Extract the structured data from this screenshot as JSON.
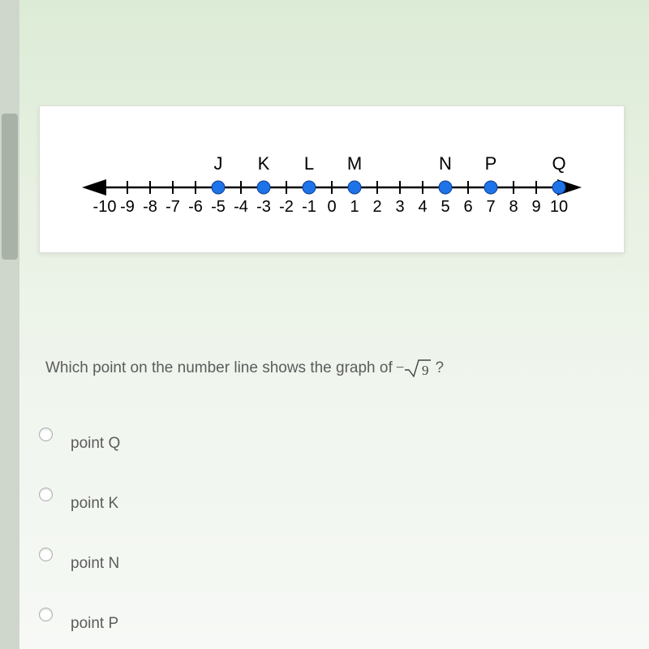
{
  "numberLine": {
    "min": -10,
    "max": 10,
    "tickStep": 1,
    "axisY": 70,
    "leftX": 40,
    "rightX": 600,
    "arrowColor": "#000000",
    "tickColor": "#000000",
    "tickLabelColor": "#000000",
    "tickLabelFontSize": 20,
    "pointLabelFontSize": 22,
    "pointColor": "#1e73e8",
    "pointStroke": "#0b3d91",
    "pointRadius": 8,
    "tickLabels": [
      "-10",
      "-9",
      "-8",
      "-7",
      "-6",
      "-5",
      "-4",
      "-3",
      "-2",
      "-1",
      "0",
      "1",
      "2",
      "3",
      "4",
      "5",
      "6",
      "7",
      "8",
      "9",
      "10"
    ],
    "points": [
      {
        "label": "J",
        "value": -5
      },
      {
        "label": "K",
        "value": -3
      },
      {
        "label": "L",
        "value": -1
      },
      {
        "label": "M",
        "value": 1
      },
      {
        "label": "N",
        "value": 5
      },
      {
        "label": "P",
        "value": 7
      },
      {
        "label": "Q",
        "value": 10
      }
    ]
  },
  "question": {
    "prefix": "Which point on the number line shows the graph of",
    "minus": "−",
    "radicand": "9",
    "suffix": "?"
  },
  "answers": [
    {
      "label": "point Q"
    },
    {
      "label": "point K"
    },
    {
      "label": "point N"
    },
    {
      "label": "point P"
    }
  ],
  "colors": {
    "cardBg": "#ffffff",
    "pageTop": "#dcebd6",
    "textColor": "#5c5c5c"
  }
}
